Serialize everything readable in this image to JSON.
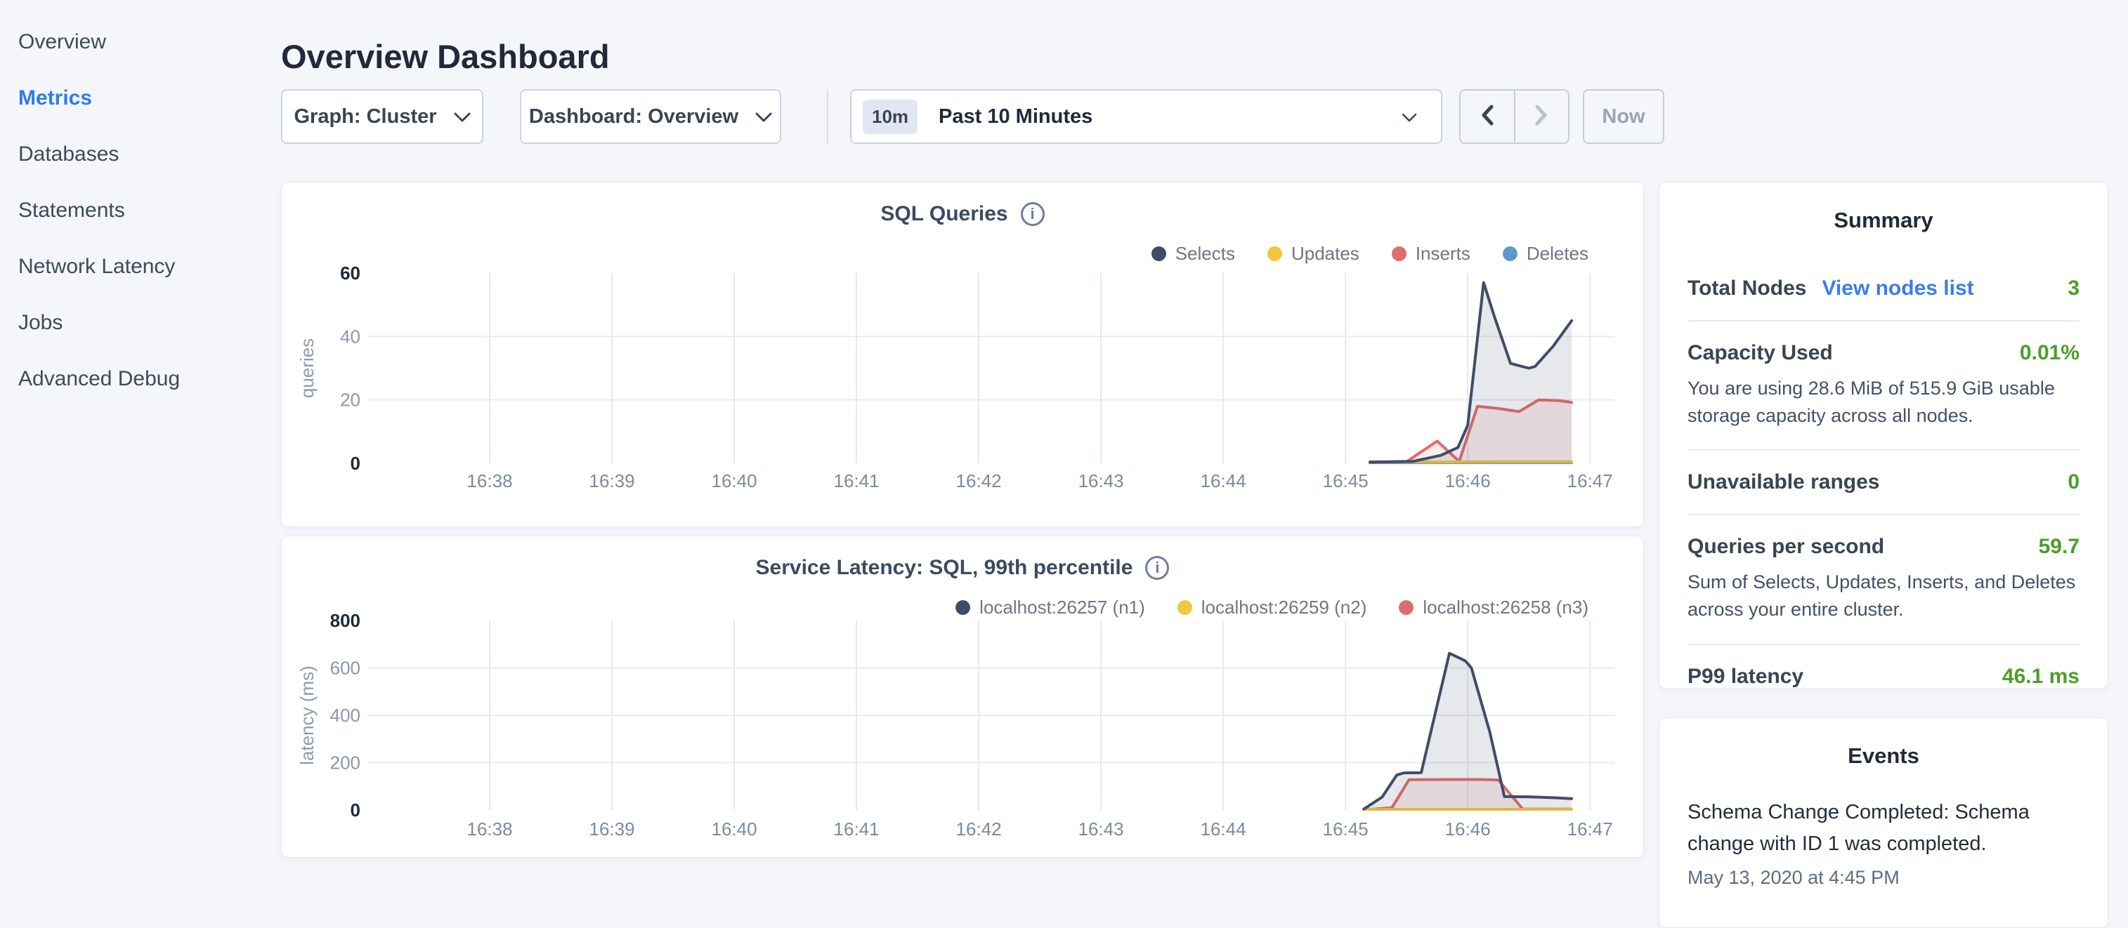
{
  "header": {
    "title": "Overview Dashboard"
  },
  "sidebar": {
    "items": [
      {
        "label": "Overview",
        "active": false
      },
      {
        "label": "Metrics",
        "active": true
      },
      {
        "label": "Databases",
        "active": false
      },
      {
        "label": "Statements",
        "active": false
      },
      {
        "label": "Network Latency",
        "active": false
      },
      {
        "label": "Jobs",
        "active": false
      },
      {
        "label": "Advanced Debug",
        "active": false
      }
    ]
  },
  "controls": {
    "graph_label": "Graph: Cluster",
    "dashboard_label": "Dashboard: Overview",
    "time_window": {
      "badge": "10m",
      "label": "Past 10 Minutes"
    },
    "now_label": "Now"
  },
  "colors": {
    "accent_blue": "#3a7ded",
    "status_green": "#49a028",
    "series_navy": "#414c68",
    "series_yellow": "#f2c63d",
    "series_red": "#e06c6d",
    "series_blue": "#5e99cd"
  },
  "chart_data": [
    {
      "type": "line",
      "title": "SQL Queries",
      "ylabel": "queries",
      "ylim": [
        0,
        60
      ],
      "yticks": [
        0,
        20,
        40,
        60
      ],
      "xticks": [
        "16:38",
        "16:39",
        "16:40",
        "16:41",
        "16:42",
        "16:43",
        "16:44",
        "16:45",
        "16:46",
        "16:47"
      ],
      "xlim": [
        -1.0,
        9.2
      ],
      "x_unit": "minutes after 16:38",
      "grid": true,
      "legend_position": "top-right",
      "series": [
        {
          "name": "Selects",
          "color": "#414c68",
          "points": [
            [
              7.2,
              0.4
            ],
            [
              7.55,
              0.6
            ],
            [
              7.78,
              2.5
            ],
            [
              7.92,
              5
            ],
            [
              8.0,
              12
            ],
            [
              8.13,
              57
            ],
            [
              8.22,
              46
            ],
            [
              8.35,
              31.5
            ],
            [
              8.5,
              30
            ],
            [
              8.55,
              30.5
            ],
            [
              8.7,
              37
            ],
            [
              8.85,
              45
            ]
          ]
        },
        {
          "name": "Updates",
          "color": "#f2c63d",
          "points": [
            [
              7.2,
              0.5
            ],
            [
              7.7,
              0.4
            ],
            [
              8.2,
              0.5
            ],
            [
              8.85,
              0.5
            ]
          ]
        },
        {
          "name": "Inserts",
          "color": "#e06c6d",
          "points": [
            [
              7.2,
              0.3
            ],
            [
              7.5,
              0.5
            ],
            [
              7.75,
              7
            ],
            [
              7.93,
              0.6
            ],
            [
              8.08,
              18
            ],
            [
              8.25,
              17.3
            ],
            [
              8.42,
              16.3
            ],
            [
              8.58,
              20
            ],
            [
              8.75,
              19.8
            ],
            [
              8.85,
              19.2
            ]
          ]
        },
        {
          "name": "Deletes",
          "color": "#5e99cd",
          "points": [
            [
              7.2,
              0.2
            ],
            [
              7.7,
              0.2
            ],
            [
              8.2,
              0.2
            ],
            [
              8.85,
              0.2
            ]
          ]
        }
      ]
    },
    {
      "type": "line",
      "title": "Service Latency: SQL, 99th percentile",
      "ylabel": "latency (ms)",
      "ylim": [
        0,
        800
      ],
      "yticks": [
        0,
        200,
        400,
        600,
        800
      ],
      "xticks": [
        "16:38",
        "16:39",
        "16:40",
        "16:41",
        "16:42",
        "16:43",
        "16:44",
        "16:45",
        "16:46",
        "16:47"
      ],
      "xlim": [
        -1.0,
        9.2
      ],
      "x_unit": "minutes after 16:38",
      "grid": true,
      "legend_position": "top-right",
      "series": [
        {
          "name": "localhost:26257 (n1)",
          "color": "#414c68",
          "points": [
            [
              7.15,
              4
            ],
            [
              7.3,
              55
            ],
            [
              7.42,
              148
            ],
            [
              7.48,
              157
            ],
            [
              7.62,
              158
            ],
            [
              7.85,
              662
            ],
            [
              7.98,
              630
            ],
            [
              8.03,
              600
            ],
            [
              8.18,
              330
            ],
            [
              8.3,
              57
            ],
            [
              8.5,
              56
            ],
            [
              8.7,
              52
            ],
            [
              8.85,
              48
            ]
          ]
        },
        {
          "name": "localhost:26259 (n2)",
          "color": "#f2c63d",
          "points": [
            [
              7.15,
              3
            ],
            [
              7.6,
              3
            ],
            [
              8.2,
              3
            ],
            [
              8.85,
              3
            ]
          ]
        },
        {
          "name": "localhost:26258 (n3)",
          "color": "#e06c6d",
          "points": [
            [
              7.2,
              3
            ],
            [
              7.38,
              10
            ],
            [
              7.52,
              128
            ],
            [
              7.8,
              129
            ],
            [
              8.1,
              129
            ],
            [
              8.25,
              127
            ],
            [
              8.45,
              4
            ],
            [
              8.65,
              4
            ],
            [
              8.85,
              4
            ]
          ]
        }
      ]
    }
  ],
  "summary": {
    "title": "Summary",
    "rows": [
      {
        "label": "Total Nodes",
        "link": "View nodes list",
        "value": "3"
      },
      {
        "label": "Capacity Used",
        "value": "0.01%",
        "description": "You are using 28.6 MiB of 515.9 GiB usable storage capacity across all nodes."
      },
      {
        "label": "Unavailable ranges",
        "value": "0"
      },
      {
        "label": "Queries per second",
        "value": "59.7",
        "description": "Sum of Selects, Updates, Inserts, and Deletes across your entire cluster."
      },
      {
        "label": "P99 latency",
        "value": "46.1 ms"
      }
    ]
  },
  "events": {
    "title": "Events",
    "items": [
      {
        "message": "Schema Change Completed: Schema change with ID 1 was completed.",
        "timestamp": "May 13, 2020 at 4:45 PM"
      }
    ]
  }
}
